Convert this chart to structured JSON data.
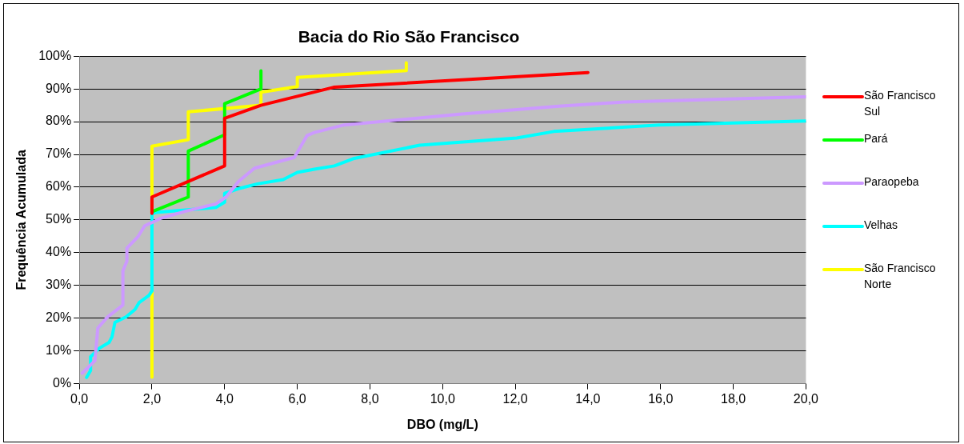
{
  "chart_data": {
    "type": "line",
    "title": "Bacia do Rio São Francisco",
    "xlabel": "DBO (mg/L)",
    "ylabel": "Frequência Acumulada",
    "xlim": [
      0,
      20
    ],
    "xticks": [
      {
        "value": 0,
        "label": "0,0"
      },
      {
        "value": 2,
        "label": "2,0"
      },
      {
        "value": 4,
        "label": "4,0"
      },
      {
        "value": 6,
        "label": "6,0"
      },
      {
        "value": 8,
        "label": "8,0"
      },
      {
        "value": 10,
        "label": "10,0"
      },
      {
        "value": 12,
        "label": "12,0"
      },
      {
        "value": 14,
        "label": "14,0"
      },
      {
        "value": 16,
        "label": "16,0"
      },
      {
        "value": 18,
        "label": "18,0"
      },
      {
        "value": 20,
        "label": "20,0"
      }
    ],
    "ylim": [
      0,
      100
    ],
    "yticks": [
      {
        "value": 0,
        "label": "0%"
      },
      {
        "value": 10,
        "label": "10%"
      },
      {
        "value": 20,
        "label": "20%"
      },
      {
        "value": 30,
        "label": "30%"
      },
      {
        "value": 40,
        "label": "40%"
      },
      {
        "value": 50,
        "label": "50%"
      },
      {
        "value": 60,
        "label": "60%"
      },
      {
        "value": 70,
        "label": "70%"
      },
      {
        "value": 80,
        "label": "80%"
      },
      {
        "value": 90,
        "label": "90%"
      },
      {
        "value": 100,
        "label": "100%"
      }
    ],
    "grid": "y",
    "legend": "right",
    "marker": "none",
    "line_style": "solid",
    "series": [
      {
        "name": "São Francisco Sul",
        "color": "#ff0000",
        "x": [
          2,
          2,
          4,
          4,
          5,
          7,
          14
        ],
        "values": [
          52,
          57,
          66.5,
          81,
          85,
          90.5,
          95
        ]
      },
      {
        "name": "Pará",
        "color": "#00ff00",
        "x": [
          2,
          3,
          3,
          4,
          4,
          5,
          5
        ],
        "values": [
          52.5,
          57,
          71,
          76,
          85.5,
          90,
          95.5
        ]
      },
      {
        "name": "Paraopeba",
        "color": "#cc99ff",
        "x": [
          0.08,
          0.43,
          0.51,
          0.78,
          1.2,
          1.2,
          1.31,
          1.31,
          1.61,
          1.8,
          2,
          2.24,
          2.94,
          3.76,
          4.04,
          4.39,
          4.82,
          5.92,
          6.27,
          6.47,
          7.29,
          10.47,
          13.2,
          15,
          20
        ],
        "values": [
          3.2,
          7,
          17,
          20.4,
          24,
          34.4,
          37.4,
          41.4,
          44.8,
          48.2,
          49.2,
          50.5,
          52.7,
          54.9,
          57,
          61.8,
          65.8,
          69.1,
          75.8,
          76.7,
          79,
          82.3,
          84.7,
          86,
          87.6
        ]
      },
      {
        "name": "Velhas",
        "color": "#00ffff",
        "x": [
          0.2,
          0.31,
          0.31,
          0.55,
          0.82,
          0.9,
          0.98,
          1.29,
          1.53,
          1.65,
          1.92,
          2,
          2,
          2.12,
          3.76,
          4,
          4,
          4.43,
          4.9,
          5.61,
          6,
          6.47,
          7.02,
          7.57,
          9.37,
          12.04,
          13.06,
          15.96,
          20
        ],
        "values": [
          1.9,
          4,
          8.2,
          10.8,
          12.6,
          14.3,
          18.7,
          20.4,
          22.6,
          24.8,
          27,
          28.3,
          51.9,
          52.3,
          53.8,
          55.4,
          58.1,
          59.7,
          61,
          62.3,
          64.5,
          65.5,
          66.5,
          68.8,
          72.8,
          75,
          77,
          79,
          80.2
        ]
      },
      {
        "name": "São Francisco Norte",
        "color": "#ffff00",
        "x": [
          2,
          2,
          3,
          3,
          5,
          5,
          6,
          6,
          9,
          9
        ],
        "values": [
          2,
          72.5,
          74.5,
          83,
          85,
          89,
          90.7,
          93.5,
          95.6,
          98
        ]
      }
    ]
  }
}
